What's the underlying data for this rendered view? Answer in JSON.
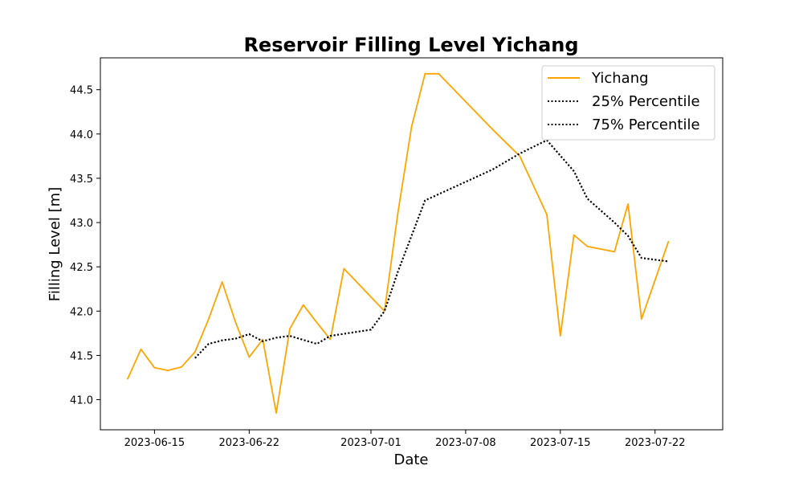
{
  "chart_data": {
    "type": "line",
    "title": "Reservoir Filling Level Yichang",
    "xlabel": "Date",
    "ylabel": "Filling Level [m]",
    "x_range": [
      "2023-06-11",
      "2023-07-27"
    ],
    "ylim": [
      40.66,
      44.86
    ],
    "x_ticks": [
      "2023-06-15",
      "2023-06-22",
      "2023-07-01",
      "2023-07-08",
      "2023-07-15",
      "2023-07-22"
    ],
    "y_ticks": [
      "41.0",
      "41.5",
      "42.0",
      "42.5",
      "43.0",
      "43.5",
      "44.0",
      "44.5"
    ],
    "grid": false,
    "legend_position": "top-right",
    "series": [
      {
        "name": "Yichang",
        "color": "#FFA500",
        "style": "solid",
        "points": [
          [
            "2023-06-13",
            41.23
          ],
          [
            "2023-06-14",
            41.57
          ],
          [
            "2023-06-15",
            41.36
          ],
          [
            "2023-06-16",
            41.33
          ],
          [
            "2023-06-17",
            41.37
          ],
          [
            "2023-06-18",
            41.54
          ],
          [
            "2023-06-19",
            41.91
          ],
          [
            "2023-06-20",
            42.33
          ],
          [
            "2023-06-21",
            41.87
          ],
          [
            "2023-06-22",
            41.48
          ],
          [
            "2023-06-23",
            41.68
          ],
          [
            "2023-06-24",
            40.85
          ],
          [
            "2023-06-25",
            41.8
          ],
          [
            "2023-06-26",
            42.07
          ],
          [
            "2023-06-27",
            41.87
          ],
          [
            "2023-06-28",
            41.68
          ],
          [
            "2023-06-29",
            42.48
          ],
          [
            "2023-07-02",
            42.0
          ],
          [
            "2023-07-03",
            43.12
          ],
          [
            "2023-07-04",
            44.08
          ],
          [
            "2023-07-05",
            44.68
          ],
          [
            "2023-07-06",
            44.68
          ],
          [
            "2023-07-10",
            44.05
          ],
          [
            "2023-07-12",
            43.75
          ],
          [
            "2023-07-14",
            43.09
          ],
          [
            "2023-07-15",
            41.72
          ],
          [
            "2023-07-16",
            42.86
          ],
          [
            "2023-07-17",
            42.73
          ],
          [
            "2023-07-19",
            42.67
          ],
          [
            "2023-07-20",
            43.21
          ],
          [
            "2023-07-21",
            41.91
          ],
          [
            "2023-07-23",
            42.79
          ]
        ]
      },
      {
        "name": "25% Percentile",
        "color": "#000000",
        "style": "dotted",
        "points": [
          [
            "2023-06-18",
            41.47
          ],
          [
            "2023-06-19",
            41.63
          ],
          [
            "2023-06-20",
            41.67
          ],
          [
            "2023-06-21",
            41.69
          ],
          [
            "2023-06-22",
            41.74
          ],
          [
            "2023-06-23",
            41.66
          ],
          [
            "2023-06-24",
            41.7
          ],
          [
            "2023-06-25",
            41.72
          ],
          [
            "2023-06-27",
            41.63
          ],
          [
            "2023-06-28",
            41.72
          ],
          [
            "2023-07-01",
            41.79
          ],
          [
            "2023-07-02",
            42.0
          ],
          [
            "2023-07-03",
            42.45
          ],
          [
            "2023-07-04",
            42.85
          ],
          [
            "2023-07-05",
            43.25
          ],
          [
            "2023-07-10",
            43.6
          ],
          [
            "2023-07-12",
            43.78
          ],
          [
            "2023-07-14",
            43.93
          ],
          [
            "2023-07-16",
            43.58
          ],
          [
            "2023-07-17",
            43.27
          ],
          [
            "2023-07-19",
            43.0
          ],
          [
            "2023-07-20",
            42.85
          ],
          [
            "2023-07-21",
            42.6
          ],
          [
            "2023-07-23",
            42.56
          ]
        ]
      },
      {
        "name": "75% Percentile",
        "color": "#000000",
        "style": "dotted",
        "points": [
          [
            "2023-06-18",
            41.47
          ],
          [
            "2023-06-19",
            41.63
          ],
          [
            "2023-06-20",
            41.67
          ],
          [
            "2023-06-21",
            41.69
          ],
          [
            "2023-06-22",
            41.74
          ],
          [
            "2023-06-23",
            41.66
          ],
          [
            "2023-06-24",
            41.7
          ],
          [
            "2023-06-25",
            41.72
          ],
          [
            "2023-06-27",
            41.63
          ],
          [
            "2023-06-28",
            41.72
          ],
          [
            "2023-07-01",
            41.79
          ],
          [
            "2023-07-02",
            42.0
          ],
          [
            "2023-07-03",
            42.45
          ],
          [
            "2023-07-04",
            42.85
          ],
          [
            "2023-07-05",
            43.25
          ],
          [
            "2023-07-10",
            43.6
          ],
          [
            "2023-07-12",
            43.78
          ],
          [
            "2023-07-14",
            43.93
          ],
          [
            "2023-07-16",
            43.58
          ],
          [
            "2023-07-17",
            43.27
          ],
          [
            "2023-07-19",
            43.0
          ],
          [
            "2023-07-20",
            42.85
          ],
          [
            "2023-07-21",
            42.6
          ],
          [
            "2023-07-23",
            42.56
          ]
        ]
      }
    ]
  }
}
